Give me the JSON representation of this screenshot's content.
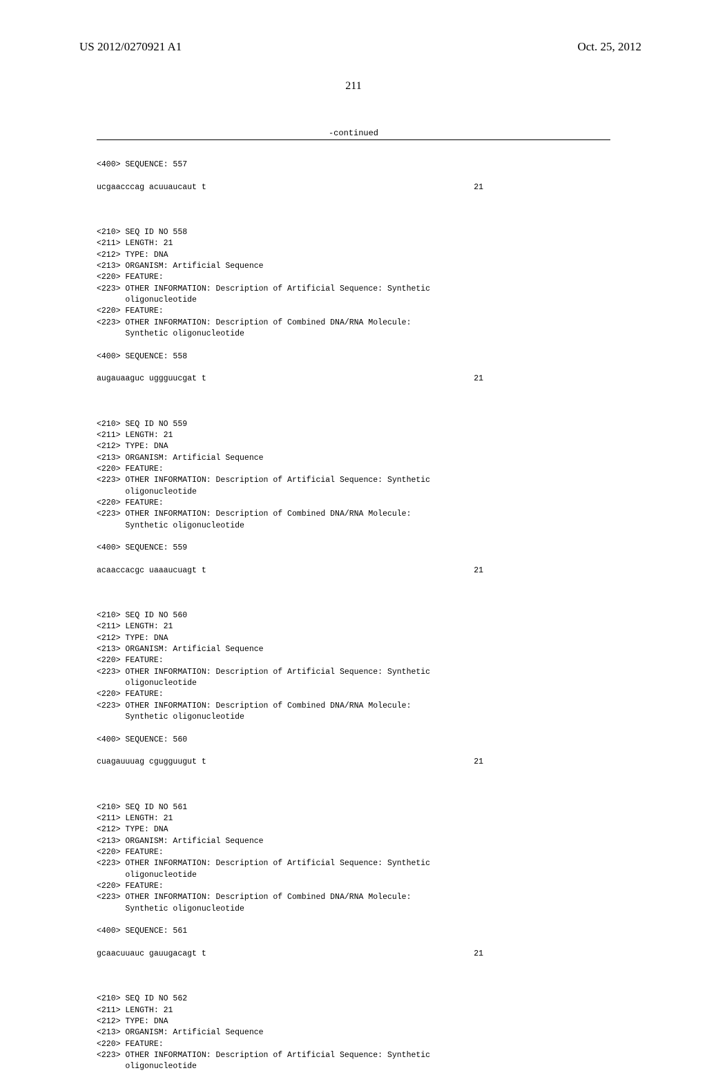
{
  "header": {
    "pub_number": "US 2012/0270921 A1",
    "pub_date": "Oct. 25, 2012"
  },
  "page_number": "211",
  "continued_label": "-continued",
  "entries": [
    {
      "pre_lines": [
        "<400> SEQUENCE: 557"
      ],
      "sequence": "ucgaacccag acuuaucaut t",
      "seq_len": "21"
    },
    {
      "header_lines": [
        "<210> SEQ ID NO 558",
        "<211> LENGTH: 21",
        "<212> TYPE: DNA",
        "<213> ORGANISM: Artificial Sequence",
        "<220> FEATURE:",
        "<223> OTHER INFORMATION: Description of Artificial Sequence: Synthetic",
        "      oligonucleotide",
        "<220> FEATURE:",
        "<223> OTHER INFORMATION: Description of Combined DNA/RNA Molecule:",
        "      Synthetic oligonucleotide"
      ],
      "seq_label": "<400> SEQUENCE: 558",
      "sequence": "augauaaguc uggguucgat t",
      "seq_len": "21"
    },
    {
      "header_lines": [
        "<210> SEQ ID NO 559",
        "<211> LENGTH: 21",
        "<212> TYPE: DNA",
        "<213> ORGANISM: Artificial Sequence",
        "<220> FEATURE:",
        "<223> OTHER INFORMATION: Description of Artificial Sequence: Synthetic",
        "      oligonucleotide",
        "<220> FEATURE:",
        "<223> OTHER INFORMATION: Description of Combined DNA/RNA Molecule:",
        "      Synthetic oligonucleotide"
      ],
      "seq_label": "<400> SEQUENCE: 559",
      "sequence": "acaaccacgc uaaaucuagt t",
      "seq_len": "21"
    },
    {
      "header_lines": [
        "<210> SEQ ID NO 560",
        "<211> LENGTH: 21",
        "<212> TYPE: DNA",
        "<213> ORGANISM: Artificial Sequence",
        "<220> FEATURE:",
        "<223> OTHER INFORMATION: Description of Artificial Sequence: Synthetic",
        "      oligonucleotide",
        "<220> FEATURE:",
        "<223> OTHER INFORMATION: Description of Combined DNA/RNA Molecule:",
        "      Synthetic oligonucleotide"
      ],
      "seq_label": "<400> SEQUENCE: 560",
      "sequence": "cuagauuuag cgugguugut t",
      "seq_len": "21"
    },
    {
      "header_lines": [
        "<210> SEQ ID NO 561",
        "<211> LENGTH: 21",
        "<212> TYPE: DNA",
        "<213> ORGANISM: Artificial Sequence",
        "<220> FEATURE:",
        "<223> OTHER INFORMATION: Description of Artificial Sequence: Synthetic",
        "      oligonucleotide",
        "<220> FEATURE:",
        "<223> OTHER INFORMATION: Description of Combined DNA/RNA Molecule:",
        "      Synthetic oligonucleotide"
      ],
      "seq_label": "<400> SEQUENCE: 561",
      "sequence": "gcaacuuauc gauugacagt t",
      "seq_len": "21"
    },
    {
      "header_lines": [
        "<210> SEQ ID NO 562",
        "<211> LENGTH: 21",
        "<212> TYPE: DNA",
        "<213> ORGANISM: Artificial Sequence",
        "<220> FEATURE:",
        "<223> OTHER INFORMATION: Description of Artificial Sequence: Synthetic",
        "      oligonucleotide"
      ],
      "seq_label": null,
      "sequence": null,
      "seq_len": null
    }
  ]
}
